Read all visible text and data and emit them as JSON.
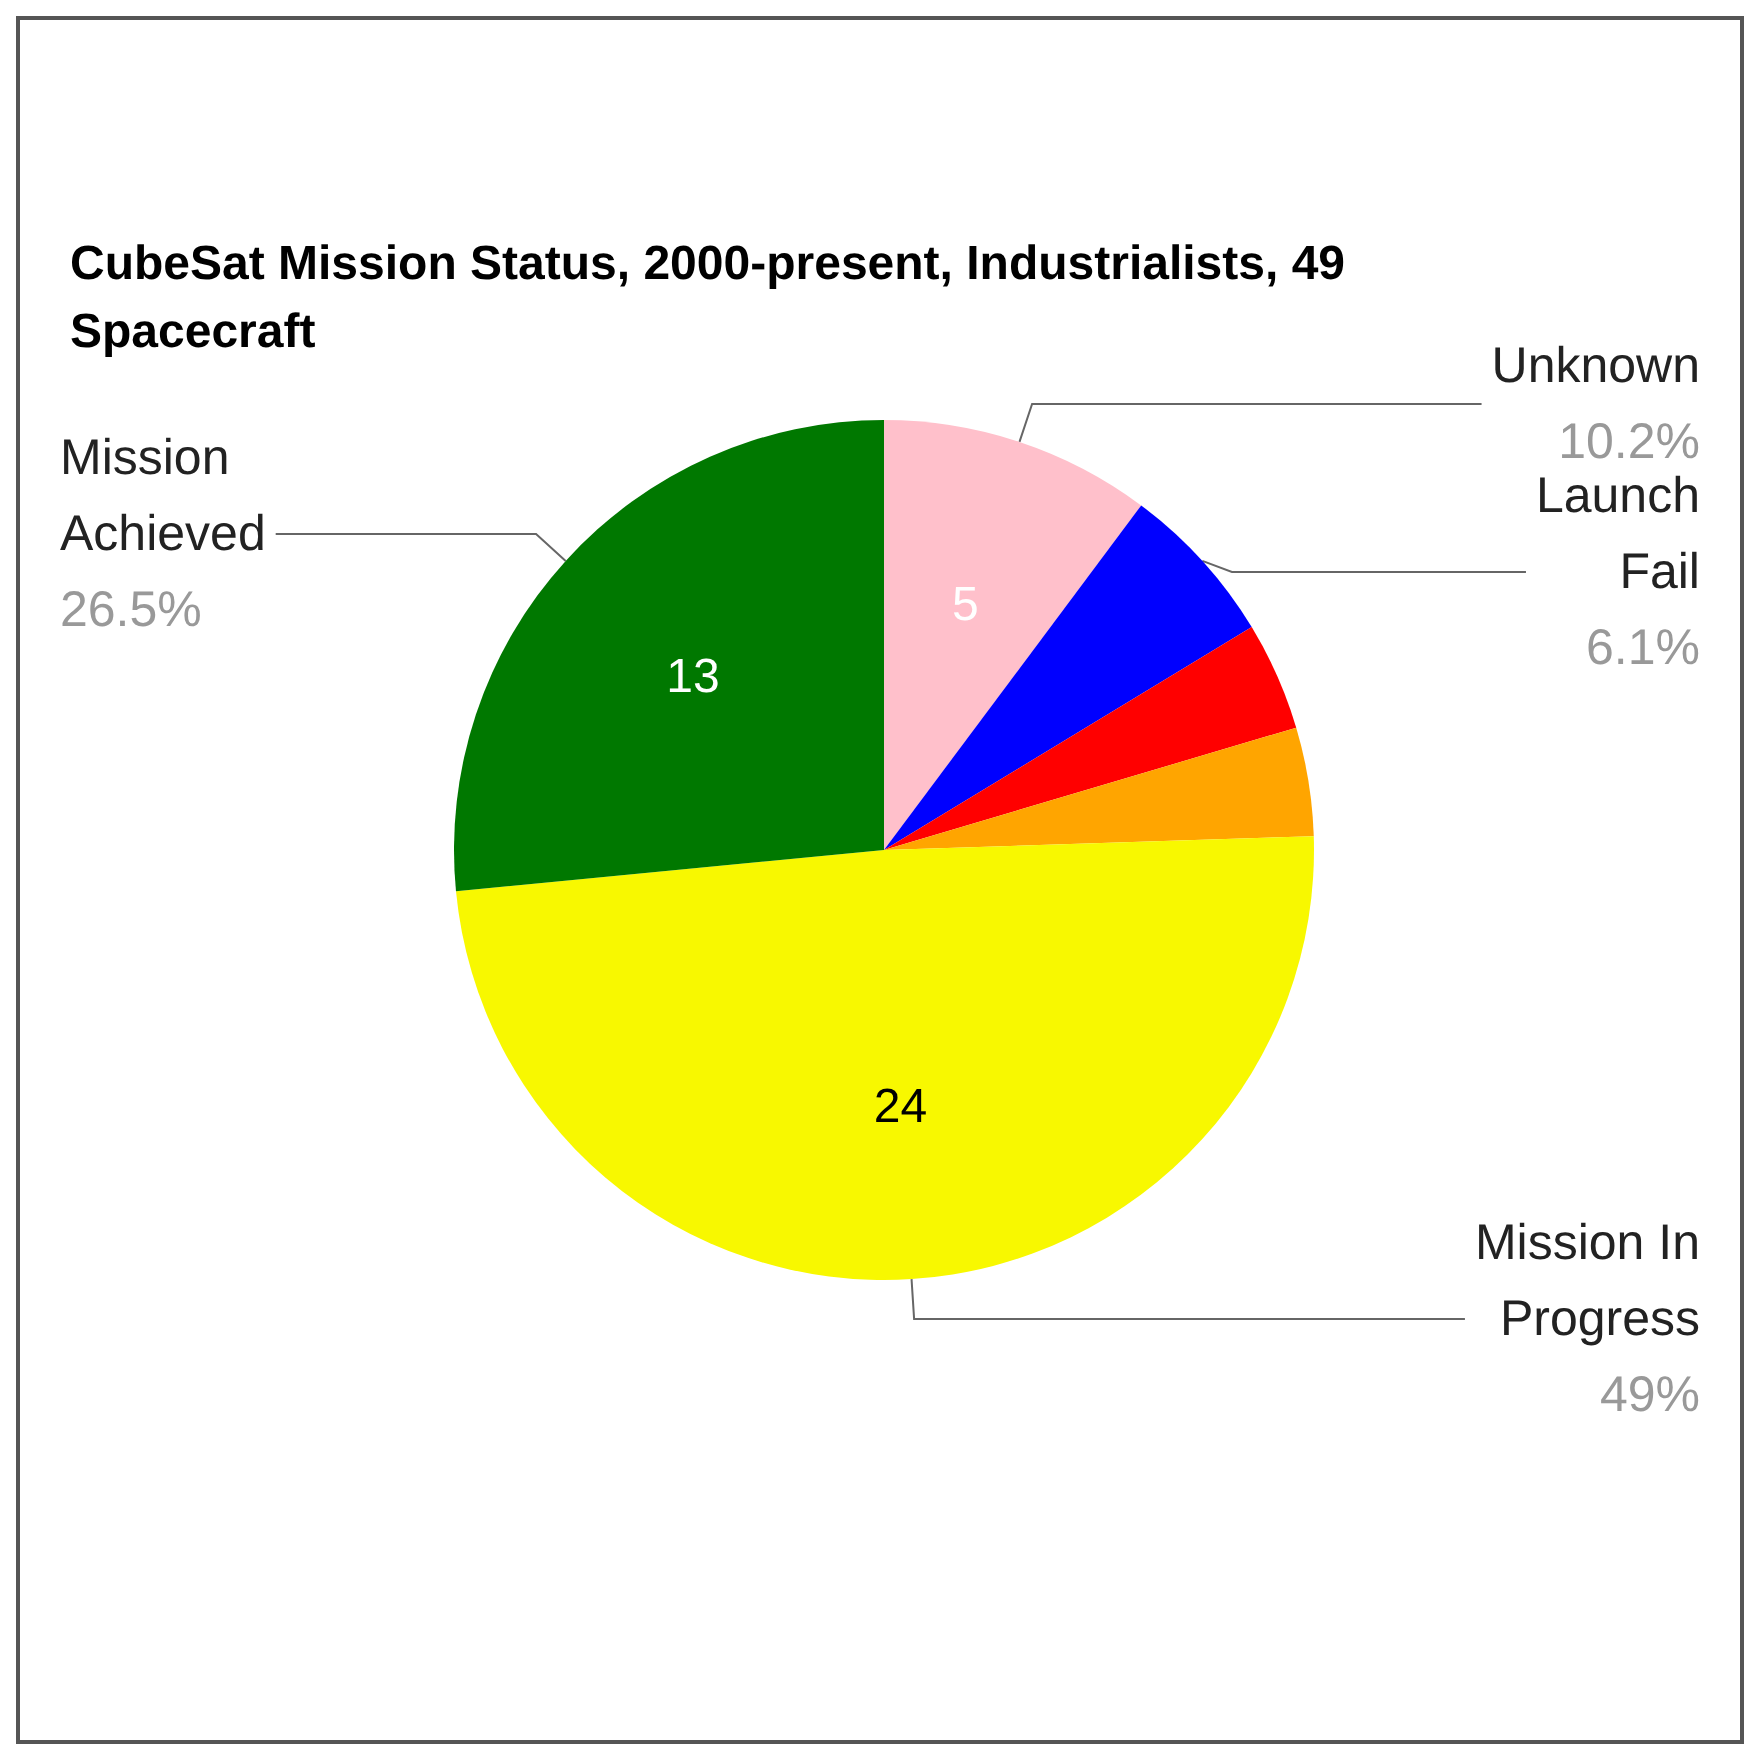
{
  "chart_data": {
    "type": "pie",
    "title": "CubeSat Mission Status, 2000-present, Industrialists, 49 Spacecraft",
    "categories": [
      "Unknown",
      "Launch Fail",
      null,
      null,
      "Mission In Progress",
      "Mission Achieved"
    ],
    "values": [
      5,
      3,
      2,
      2,
      24,
      13
    ],
    "colors": [
      "#ffc0cb",
      "#0000ff",
      "#ff0000",
      "#ffa500",
      "#f8f800",
      "#007800"
    ],
    "value_labels": [
      "5",
      null,
      null,
      null,
      "24",
      "13"
    ],
    "annotations": [
      {
        "text": "10.2%",
        "x": "Unknown"
      },
      {
        "text": "6.1%",
        "x": "Launch Fail"
      },
      {
        "text": "49%",
        "x": "Mission In Progress"
      },
      {
        "text": "26.5%",
        "x": "Mission Achieved"
      }
    ],
    "legend": false
  }
}
